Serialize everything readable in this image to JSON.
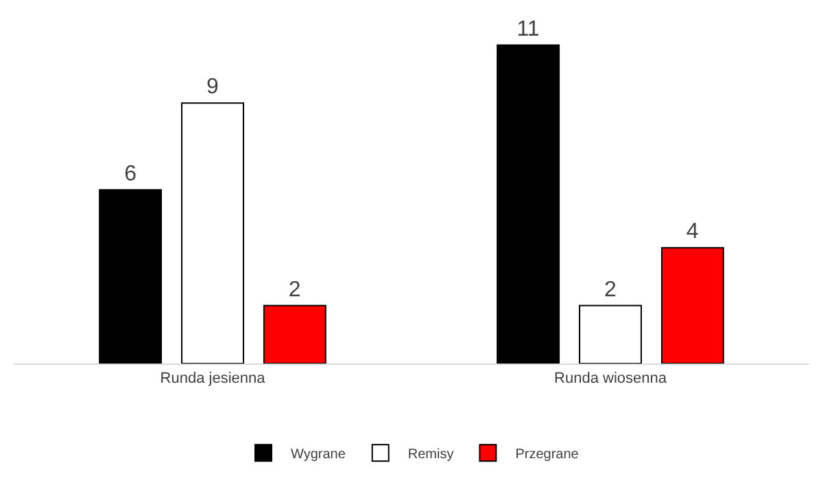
{
  "chart_data": {
    "type": "bar",
    "categories": [
      "Runda jesienna",
      "Runda wiosenna"
    ],
    "series": [
      {
        "name": "Wygrane",
        "color": "#000000",
        "values": [
          6,
          11
        ]
      },
      {
        "name": "Remisy",
        "color": "#ffffff",
        "values": [
          9,
          2
        ]
      },
      {
        "name": "Przegrane",
        "color": "#ff0000",
        "values": [
          2,
          4
        ]
      }
    ],
    "data_labels": true,
    "grid": false,
    "legend": "bottom"
  }
}
